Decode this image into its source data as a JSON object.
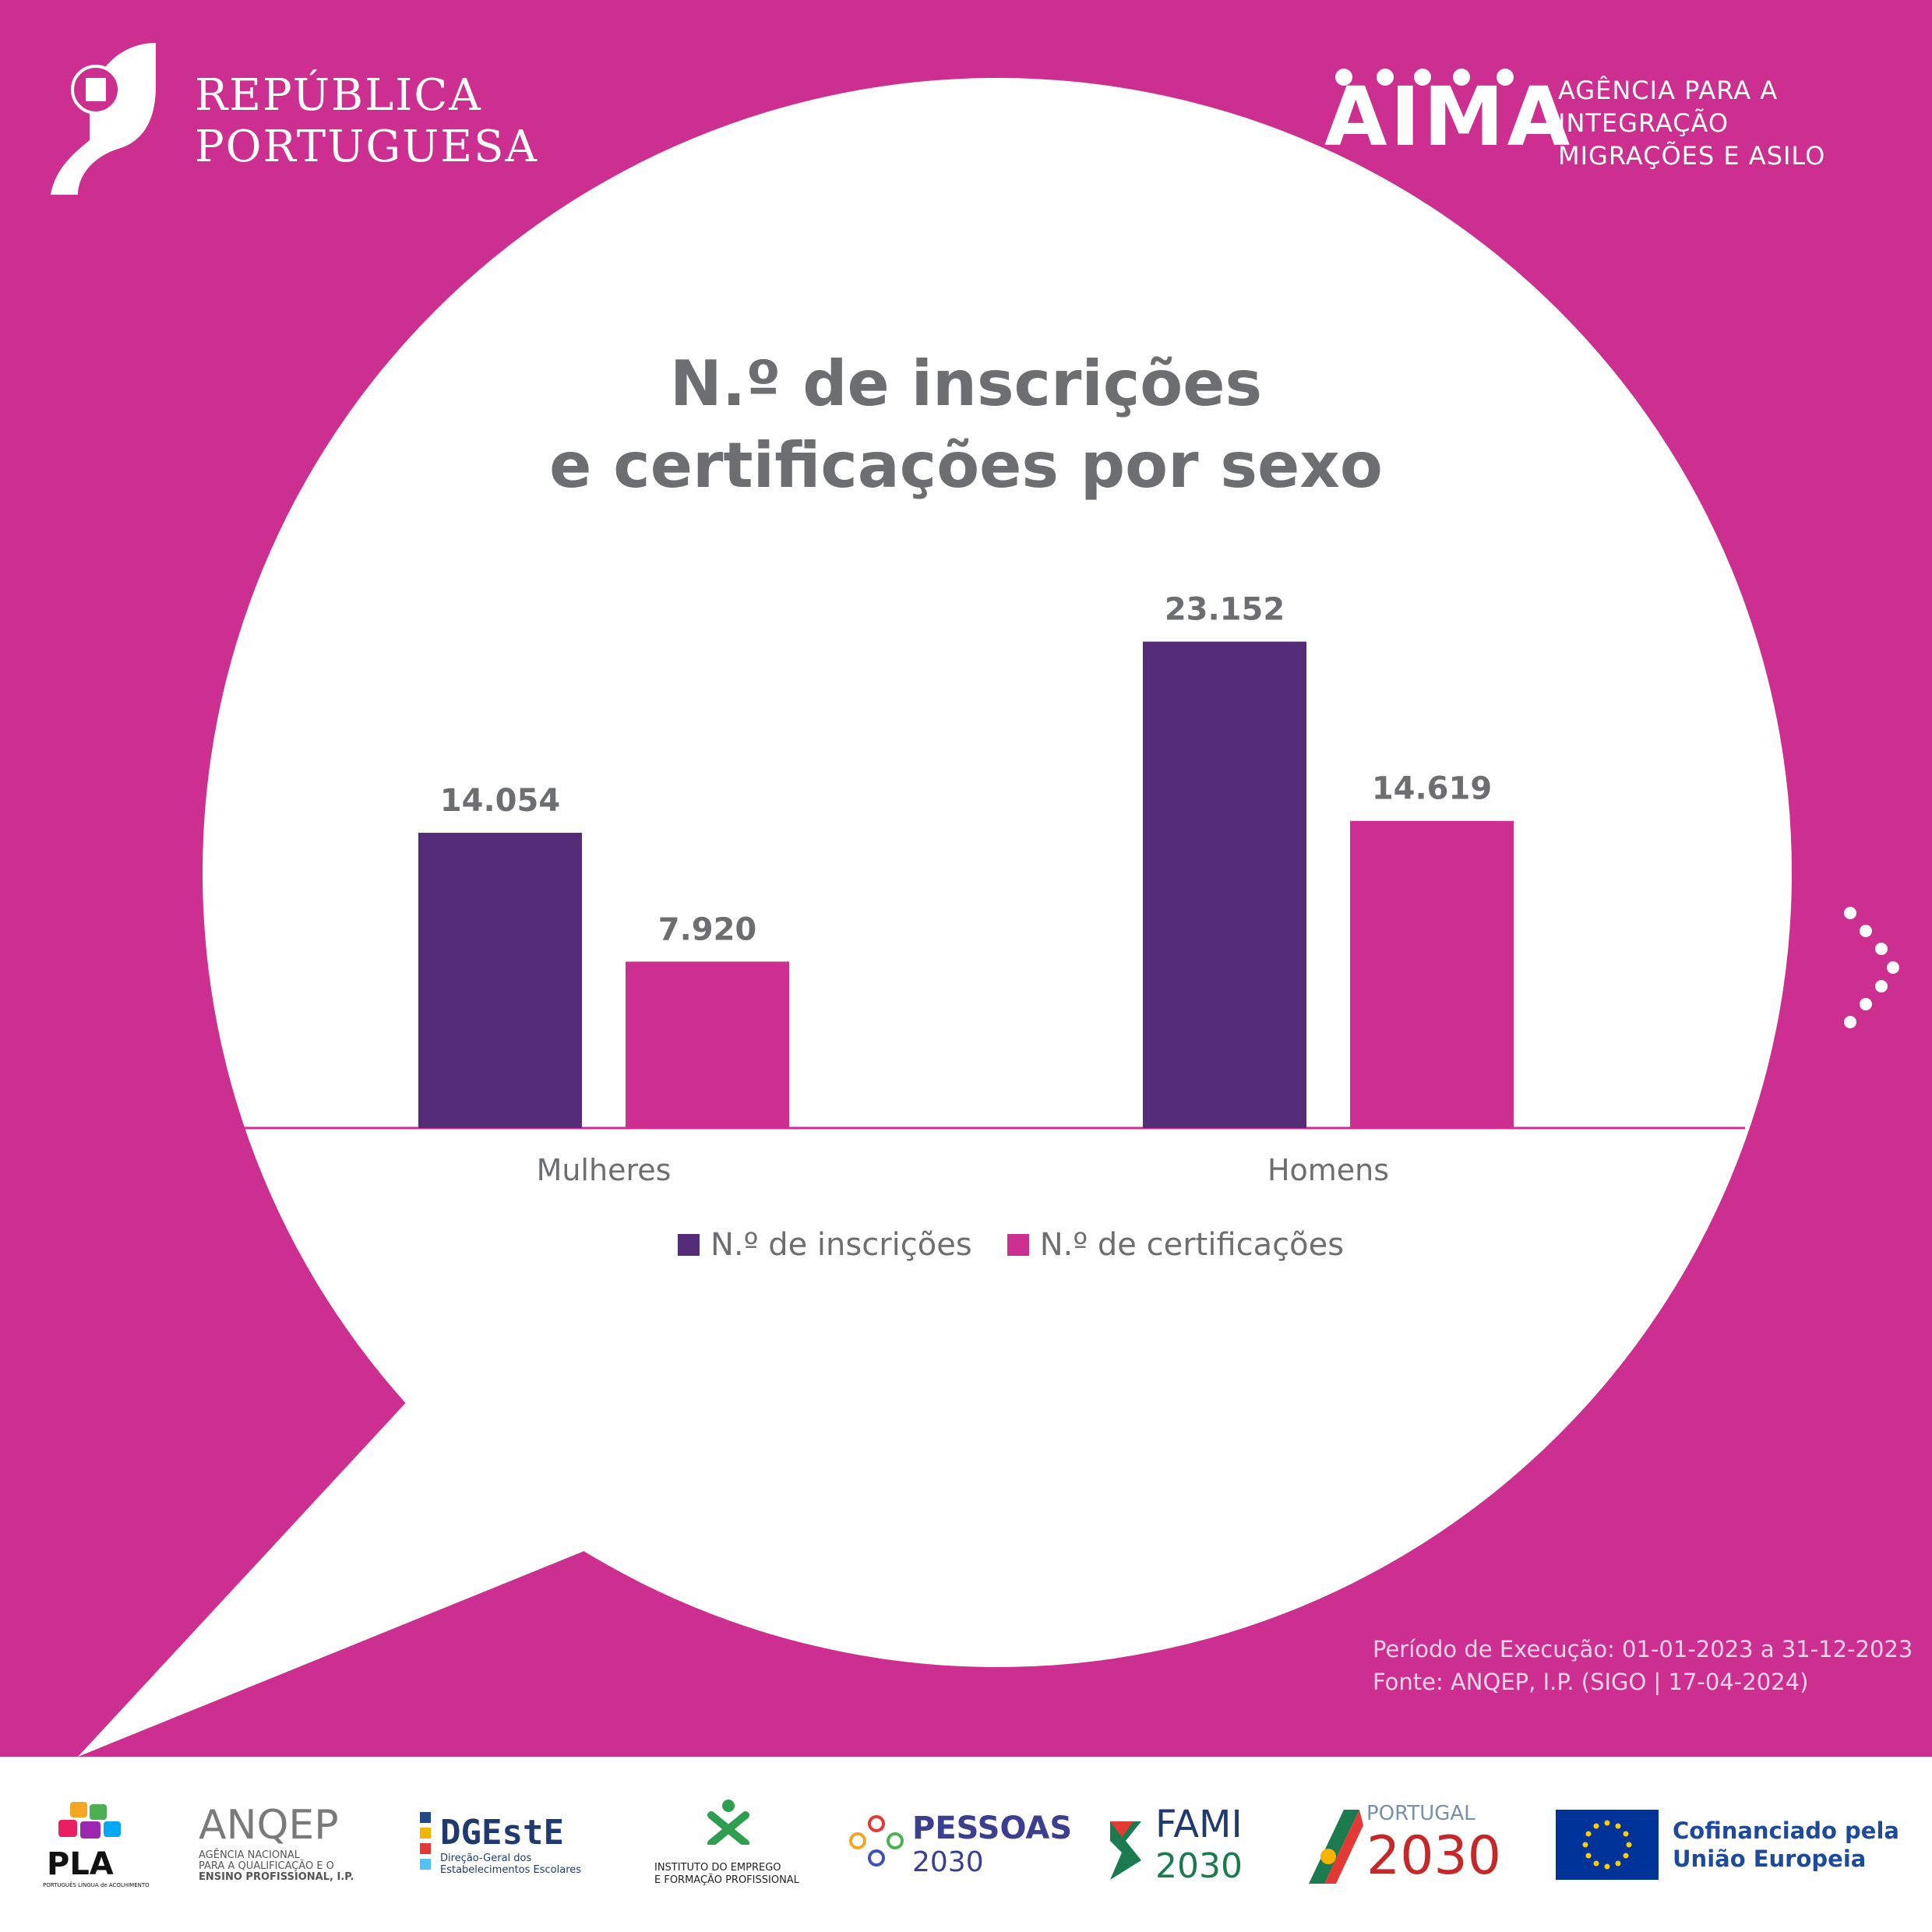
{
  "header": {
    "republica_line1": "REPÚBLICA",
    "republica_line2": "PORTUGUESA",
    "aima_word": "AIMA",
    "aima_sub1": "AGÊNCIA PARA A",
    "aima_sub2": "INTEGRAÇÃO",
    "aima_sub3": "MIGRAÇÕES E ASILO"
  },
  "colors": {
    "background": "#cc2f8f",
    "inscricoes": "#552c78",
    "certificacoes": "#cc2f8f",
    "text_gray": "#6d6e70"
  },
  "chart_data": {
    "type": "bar",
    "title_line1": "N.º de inscrições",
    "title_line2": "e certificações por sexo",
    "categories": [
      "Mulheres",
      "Homens"
    ],
    "series": [
      {
        "name": "N.º de inscrições",
        "values": [
          14054,
          23152
        ],
        "labels": [
          "14.054",
          "23.152"
        ]
      },
      {
        "name": "N.º de certificações",
        "values": [
          7920,
          14619
        ],
        "labels": [
          "7.920",
          "14.619"
        ]
      }
    ],
    "ylim": [
      0,
      25000
    ],
    "grid": false,
    "legend": "bottom"
  },
  "footnote": {
    "line1": "Período de Execução: 01-01-2023 a 31-12-2023",
    "line2": "Fonte: ANQEP, I.P. (SIGO | 17-04-2024)"
  },
  "footer": {
    "pla": "PLA",
    "pla_sub": "PORTUGUÊS LÍNGUA de ACOLHIMENTO",
    "anqep": "ANQEP",
    "anqep_sub1": "AGÊNCIA NACIONAL",
    "anqep_sub2": "PARA A QUALIFICAÇÃO E O",
    "anqep_sub3": "ENSINO PROFISSIONAL, I.P.",
    "dgeste": "DGEstE",
    "dgeste_sub1": "Direção-Geral dos",
    "dgeste_sub2": "Estabelecimentos Escolares",
    "iefp_sub1": "INSTITUTO DO EMPREGO",
    "iefp_sub2": "E FORMAÇÃO PROFISSIONAL",
    "pessoas": "PESSOAS",
    "pessoas_year": "2030",
    "fami": "FAMI",
    "fami_year": "2030",
    "portugal": "PORTUGAL",
    "portugal_year": "2030",
    "eu_line1": "Cofinanciado pela",
    "eu_line2": "União Europeia"
  }
}
